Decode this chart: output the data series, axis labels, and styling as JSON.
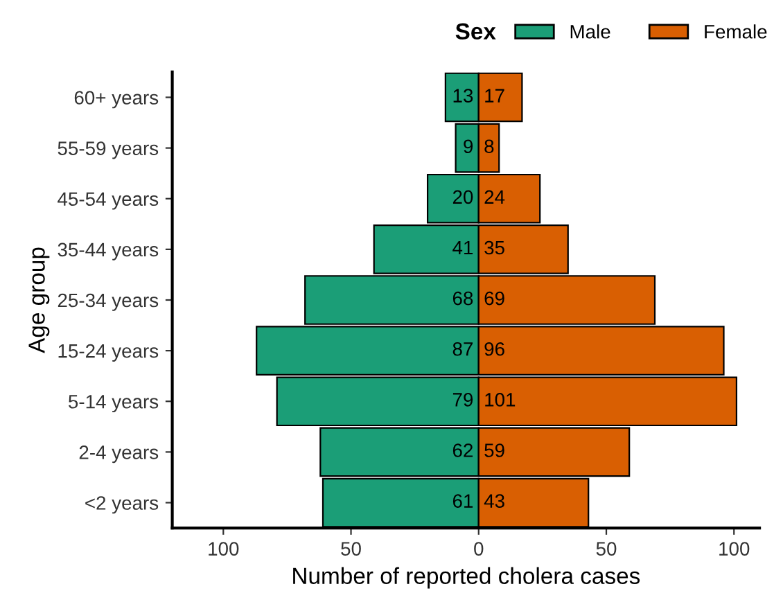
{
  "chart_data": {
    "type": "bar",
    "orientation": "horizontal",
    "xlabel": "Number of reported cholera cases",
    "ylabel": "Age group",
    "legend_title": "Sex",
    "categories": [
      "60+ years",
      "55-59 years",
      "45-54 years",
      "35-44 years",
      "25-34 years",
      "15-24 years",
      "5-14 years",
      "2-4 years",
      "<2 years"
    ],
    "series": [
      {
        "name": "Male",
        "color": "#1b9e77",
        "values": [
          13,
          9,
          20,
          41,
          68,
          87,
          79,
          62,
          61
        ],
        "base": [
          -13,
          -9,
          -20,
          -41,
          -68,
          -87,
          -79,
          -62,
          -61
        ],
        "value_labels": [
          "13",
          "9",
          "20",
          "41",
          "68",
          "87",
          "79",
          "62",
          "61"
        ]
      },
      {
        "name": "Female",
        "color": "#d95f02",
        "values": [
          17,
          8,
          24,
          35,
          69,
          96,
          101,
          59,
          43
        ],
        "value_labels": [
          "17",
          "8",
          "24",
          "35",
          "69",
          "96",
          "101",
          "59",
          "43"
        ]
      }
    ],
    "xlim": [
      -120,
      110
    ],
    "xticks": [
      {
        "value": -100,
        "label": "100"
      },
      {
        "value": -50,
        "label": "50"
      },
      0,
      50,
      100
    ],
    "grid": false,
    "legend": "top right"
  }
}
